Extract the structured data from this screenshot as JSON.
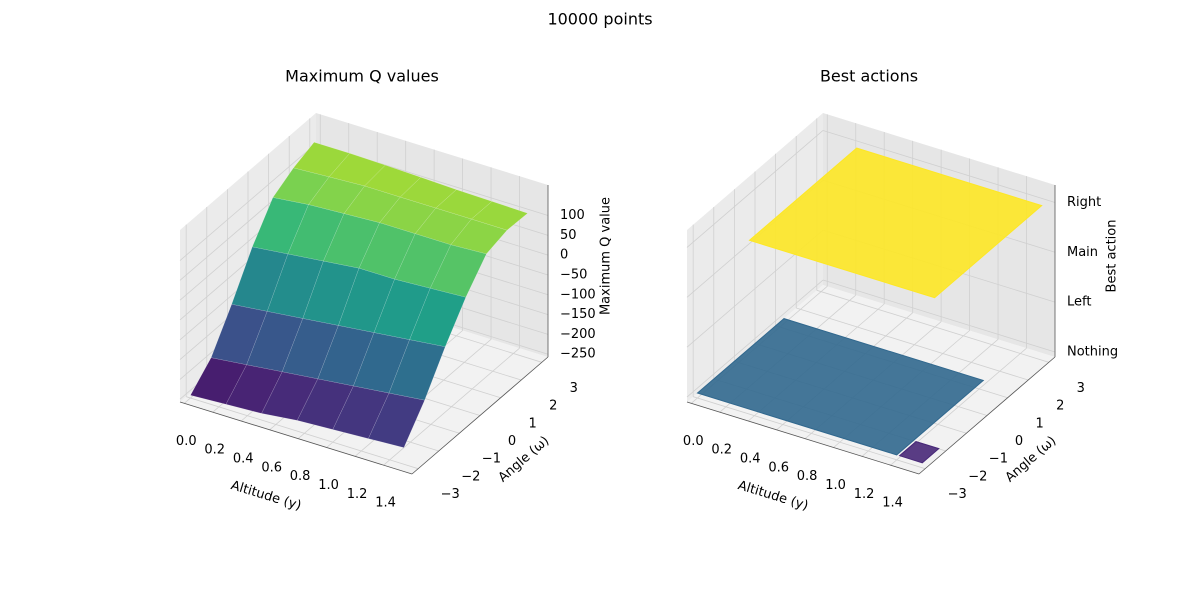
{
  "title": "10000 points",
  "chart_data": [
    {
      "type": "surface3d",
      "title": "Maximum Q values",
      "x_label": "Altitude (y)",
      "y_label": "Angle (ω)",
      "z_label": "Maximum Q value",
      "xlim": [
        -0.03,
        1.6
      ],
      "ylim": [
        -3.3,
        3.3
      ],
      "zlim": [
        -257,
        177
      ],
      "xticks": [
        {
          "value": 0,
          "label": "0.0"
        },
        0.2,
        0.4,
        0.6,
        0.8,
        {
          "value": 1,
          "label": "1.0"
        },
        1.2,
        1.4
      ],
      "yticks": [
        {
          "value": -3,
          "label": "−3"
        },
        {
          "value": -2,
          "label": "−2"
        },
        {
          "value": -1,
          "label": "−1"
        },
        0,
        1,
        2,
        3
      ],
      "zticks": [
        {
          "value": -250,
          "label": "−250"
        },
        {
          "value": -200,
          "label": "−200"
        },
        {
          "value": -150,
          "label": "−150"
        },
        {
          "value": -100,
          "label": "−100"
        },
        {
          "value": -50,
          "label": "−50"
        },
        0,
        50,
        100
      ],
      "x": [
        0,
        0.25,
        0.5,
        0.75,
        1.0,
        1.25,
        1.5
      ],
      "y": [
        -3,
        -2,
        -1,
        0,
        1,
        2,
        3
      ],
      "z": [
        [
          -250,
          -245,
          -240,
          -230,
          -225,
          -220,
          -215
        ],
        [
          -200,
          -190,
          -180,
          -170,
          -160,
          -150,
          -140
        ],
        [
          -110,
          -100,
          -90,
          -80,
          -70,
          -60,
          -50
        ],
        [
          -10,
          0,
          10,
          20,
          20,
          25,
          30
        ],
        [
          70,
          80,
          85,
          90,
          90,
          90,
          95
        ],
        [
          100,
          105,
          110,
          110,
          110,
          110,
          110
        ],
        [
          120,
          120,
          118,
          115,
          112,
          110,
          108
        ]
      ],
      "colormap": "viridis"
    },
    {
      "type": "planes3d",
      "title": "Best actions",
      "x_label": "Altitude (y)",
      "y_label": "Angle (ω)",
      "z_label": "Best action",
      "xlim": [
        -0.03,
        1.6
      ],
      "ylim": [
        -3.3,
        3.3
      ],
      "zlim": [
        -0.1,
        3.35
      ],
      "xticks": [
        {
          "value": 0,
          "label": "0.0"
        },
        0.2,
        0.4,
        0.6,
        0.8,
        {
          "value": 1,
          "label": "1.0"
        },
        1.2,
        1.4
      ],
      "yticks": [
        {
          "value": -3,
          "label": "−3"
        },
        {
          "value": -2,
          "label": "−2"
        },
        {
          "value": -1,
          "label": "−1"
        },
        0,
        1,
        2,
        3
      ],
      "zticks": [
        {
          "value": 0,
          "label": "Nothing"
        },
        {
          "value": 1,
          "label": "Left"
        },
        {
          "value": 2,
          "label": "Main"
        },
        {
          "value": 3,
          "label": "Right"
        }
      ],
      "planes": [
        {
          "level": 0,
          "color": "#31688e",
          "x": [
            0,
            1.4
          ],
          "y": [
            -3,
            1.2
          ]
        },
        {
          "level": 0,
          "color": "#482878",
          "x": [
            1.42,
            1.58
          ],
          "y": [
            -3,
            -2.2
          ]
        },
        {
          "level": 3,
          "color": "#fde725",
          "x": [
            0.25,
            1.55
          ],
          "y": [
            -2.2,
            3
          ]
        }
      ]
    }
  ]
}
